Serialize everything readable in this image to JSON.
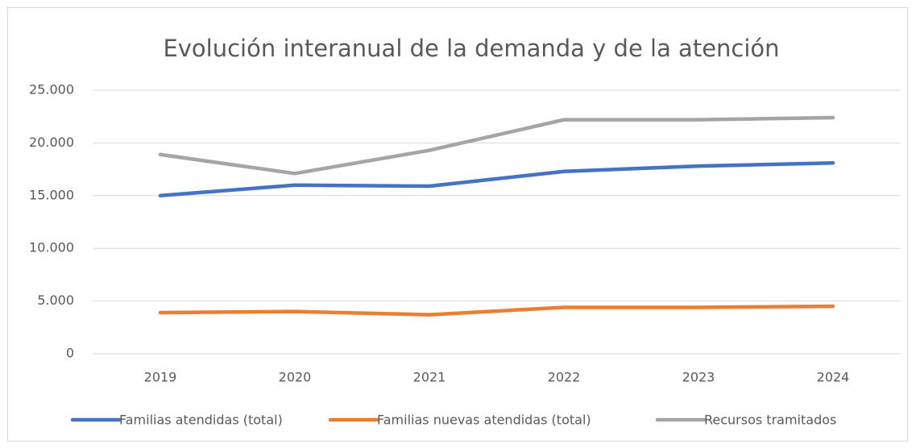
{
  "chart_data": {
    "type": "line",
    "title": "Evolución interanual de la demanda y de la atención",
    "categories": [
      "2019",
      "2020",
      "2021",
      "2022",
      "2023",
      "2024"
    ],
    "series": [
      {
        "name": "Familias atendidas (total)",
        "color": "#4472c4",
        "values": [
          15000,
          16000,
          15900,
          17300,
          17800,
          18100
        ]
      },
      {
        "name": "Familias nuevas atendidas (total)",
        "color": "#ed7d31",
        "values": [
          3900,
          4000,
          3700,
          4400,
          4400,
          4500
        ]
      },
      {
        "name": "Recursos tramitados",
        "color": "#a5a5a5",
        "values": [
          18900,
          17100,
          19300,
          22200,
          22200,
          22400
        ]
      }
    ],
    "ylim": [
      0,
      25000
    ],
    "yticks": [
      0,
      {
        "value": 5000,
        "label": "5.000"
      },
      {
        "value": 10000,
        "label": "10.000"
      },
      {
        "value": 15000,
        "label": "15.000"
      },
      {
        "value": 20000,
        "label": "20.000"
      },
      {
        "value": 25000,
        "label": "25.000"
      }
    ],
    "grid": true,
    "legend": "bottom"
  }
}
